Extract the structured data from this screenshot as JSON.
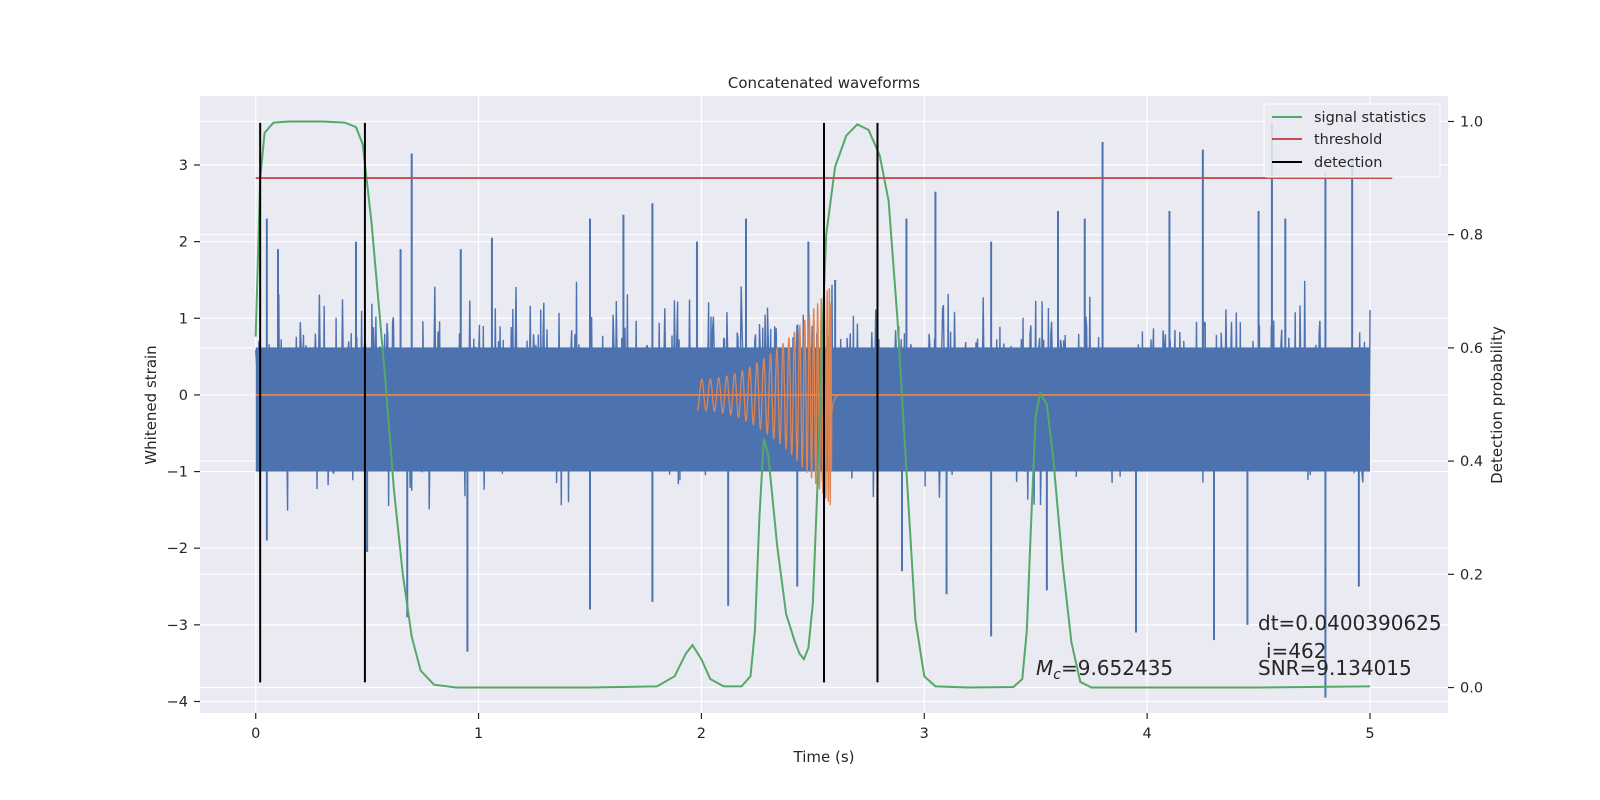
{
  "chart_data": {
    "type": "line",
    "title": "Concatenated waveforms",
    "xlabel": "Time (s)",
    "ylabel": "Whitened strain",
    "y2label": "Detection probability",
    "xlim": [
      -0.25,
      5.35
    ],
    "ylim": [
      -4.15,
      3.9
    ],
    "y2lim": [
      -0.045,
      1.045
    ],
    "x_ticks": [
      0,
      1,
      2,
      3,
      4,
      5
    ],
    "y_ticks": [
      -4,
      -3,
      -2,
      -1,
      0,
      1,
      2,
      3
    ],
    "y2_ticks": [
      0.0,
      0.2,
      0.4,
      0.6,
      0.8,
      1.0
    ],
    "grid": true,
    "legend_position": "top-right",
    "colors": {
      "strain": "#4c72b0",
      "template": "#dd8452",
      "signal_statistics": "#55a868",
      "threshold": "#c44e52",
      "detection": "#000000",
      "background": "#eaeaf2",
      "grid": "#ffffff"
    },
    "series": [
      {
        "name": "signal statistics",
        "axis": "right",
        "points": [
          [
            0,
            0.62
          ],
          [
            0.02,
            0.9
          ],
          [
            0.04,
            0.98
          ],
          [
            0.08,
            0.998
          ],
          [
            0.15,
            1.0
          ],
          [
            0.3,
            1.0
          ],
          [
            0.4,
            0.998
          ],
          [
            0.45,
            0.99
          ],
          [
            0.48,
            0.96
          ],
          [
            0.52,
            0.82
          ],
          [
            0.58,
            0.55
          ],
          [
            0.62,
            0.35
          ],
          [
            0.66,
            0.2
          ],
          [
            0.7,
            0.09
          ],
          [
            0.74,
            0.03
          ],
          [
            0.8,
            0.005
          ],
          [
            0.9,
            0.0
          ],
          [
            1.5,
            0.0
          ],
          [
            1.8,
            0.002
          ],
          [
            1.88,
            0.02
          ],
          [
            1.93,
            0.06
          ],
          [
            1.96,
            0.075
          ],
          [
            2.0,
            0.05
          ],
          [
            2.04,
            0.015
          ],
          [
            2.1,
            0.002
          ],
          [
            2.18,
            0.002
          ],
          [
            2.22,
            0.02
          ],
          [
            2.24,
            0.1
          ],
          [
            2.26,
            0.3
          ],
          [
            2.28,
            0.44
          ],
          [
            2.3,
            0.41
          ],
          [
            2.34,
            0.25
          ],
          [
            2.38,
            0.13
          ],
          [
            2.42,
            0.08
          ],
          [
            2.44,
            0.06
          ],
          [
            2.46,
            0.05
          ],
          [
            2.48,
            0.07
          ],
          [
            2.5,
            0.15
          ],
          [
            2.52,
            0.35
          ],
          [
            2.54,
            0.6
          ],
          [
            2.56,
            0.8
          ],
          [
            2.6,
            0.92
          ],
          [
            2.65,
            0.975
          ],
          [
            2.7,
            0.995
          ],
          [
            2.75,
            0.985
          ],
          [
            2.8,
            0.94
          ],
          [
            2.84,
            0.86
          ],
          [
            2.88,
            0.65
          ],
          [
            2.92,
            0.38
          ],
          [
            2.96,
            0.12
          ],
          [
            3.0,
            0.02
          ],
          [
            3.05,
            0.002
          ],
          [
            3.2,
            0.0
          ],
          [
            3.4,
            0.001
          ],
          [
            3.44,
            0.015
          ],
          [
            3.46,
            0.1
          ],
          [
            3.48,
            0.3
          ],
          [
            3.5,
            0.48
          ],
          [
            3.52,
            0.52
          ],
          [
            3.55,
            0.5
          ],
          [
            3.58,
            0.4
          ],
          [
            3.62,
            0.22
          ],
          [
            3.66,
            0.08
          ],
          [
            3.7,
            0.01
          ],
          [
            3.75,
            0.0
          ],
          [
            4.5,
            0.0
          ],
          [
            5.0,
            0.002
          ]
        ]
      },
      {
        "name": "threshold",
        "axis": "right",
        "points": [
          [
            0,
            0.9
          ],
          [
            5.1,
            0.9
          ]
        ]
      },
      {
        "name": "detection",
        "axis": "left",
        "segments": [
          {
            "x": 0.02,
            "y": [
              -3.75,
              3.55
            ]
          },
          {
            "x": 0.49,
            "y": [
              -3.75,
              3.55
            ]
          },
          {
            "x": 2.55,
            "y": [
              -3.75,
              3.55
            ]
          },
          {
            "x": 2.79,
            "y": [
              -3.75,
              3.55
            ]
          }
        ]
      },
      {
        "name": "",
        "role": "whitened strain noise",
        "axis": "left",
        "x_range": [
          0,
          5
        ],
        "band": [
          -1.0,
          0.62
        ],
        "spike_peaks_upper": [
          [
            0.05,
            2.3
          ],
          [
            0.1,
            1.9
          ],
          [
            0.45,
            2.0
          ],
          [
            0.65,
            1.9
          ],
          [
            0.7,
            3.15
          ],
          [
            0.92,
            1.9
          ],
          [
            1.06,
            2.05
          ],
          [
            1.5,
            2.3
          ],
          [
            1.65,
            2.35
          ],
          [
            1.78,
            2.5
          ],
          [
            1.98,
            2.0
          ],
          [
            2.2,
            2.3
          ],
          [
            2.48,
            2.0
          ],
          [
            2.6,
            1.5
          ],
          [
            2.92,
            2.3
          ],
          [
            3.05,
            2.65
          ],
          [
            3.3,
            2.0
          ],
          [
            3.6,
            2.4
          ],
          [
            3.72,
            2.3
          ],
          [
            3.8,
            3.3
          ],
          [
            4.1,
            2.4
          ],
          [
            4.25,
            3.2
          ],
          [
            4.5,
            2.4
          ],
          [
            4.56,
            3.55
          ],
          [
            4.62,
            2.3
          ],
          [
            4.8,
            2.9
          ],
          [
            4.92,
            3.1
          ]
        ],
        "spike_peaks_lower": [
          [
            0.05,
            -1.9
          ],
          [
            0.5,
            -2.05
          ],
          [
            0.68,
            -2.9
          ],
          [
            0.95,
            -3.35
          ],
          [
            1.5,
            -2.8
          ],
          [
            1.78,
            -2.7
          ],
          [
            2.12,
            -2.75
          ],
          [
            2.43,
            -2.5
          ],
          [
            2.9,
            -2.3
          ],
          [
            3.1,
            -2.6
          ],
          [
            3.3,
            -3.15
          ],
          [
            3.55,
            -2.55
          ],
          [
            3.95,
            -3.1
          ],
          [
            4.3,
            -3.2
          ],
          [
            4.45,
            -3.0
          ],
          [
            4.8,
            -3.95
          ],
          [
            4.95,
            -2.5
          ]
        ]
      },
      {
        "name": "",
        "role": "injected chirp template",
        "axis": "left",
        "chirp": {
          "start": 1.98,
          "peak": 2.58,
          "end": 2.62,
          "amp_start": 0.2,
          "amp_peak": 1.45
        },
        "baseline": [
          [
            0,
            0
          ],
          [
            5,
            0
          ]
        ]
      }
    ],
    "legend": [
      "signal statistics",
      "threshold",
      "detection"
    ],
    "annotations": {
      "mc_label": "=9.652435",
      "dt_label": "dt=0.0400390625",
      "i_label": "i=462",
      "snr_label": "SNR=9.134015"
    }
  }
}
